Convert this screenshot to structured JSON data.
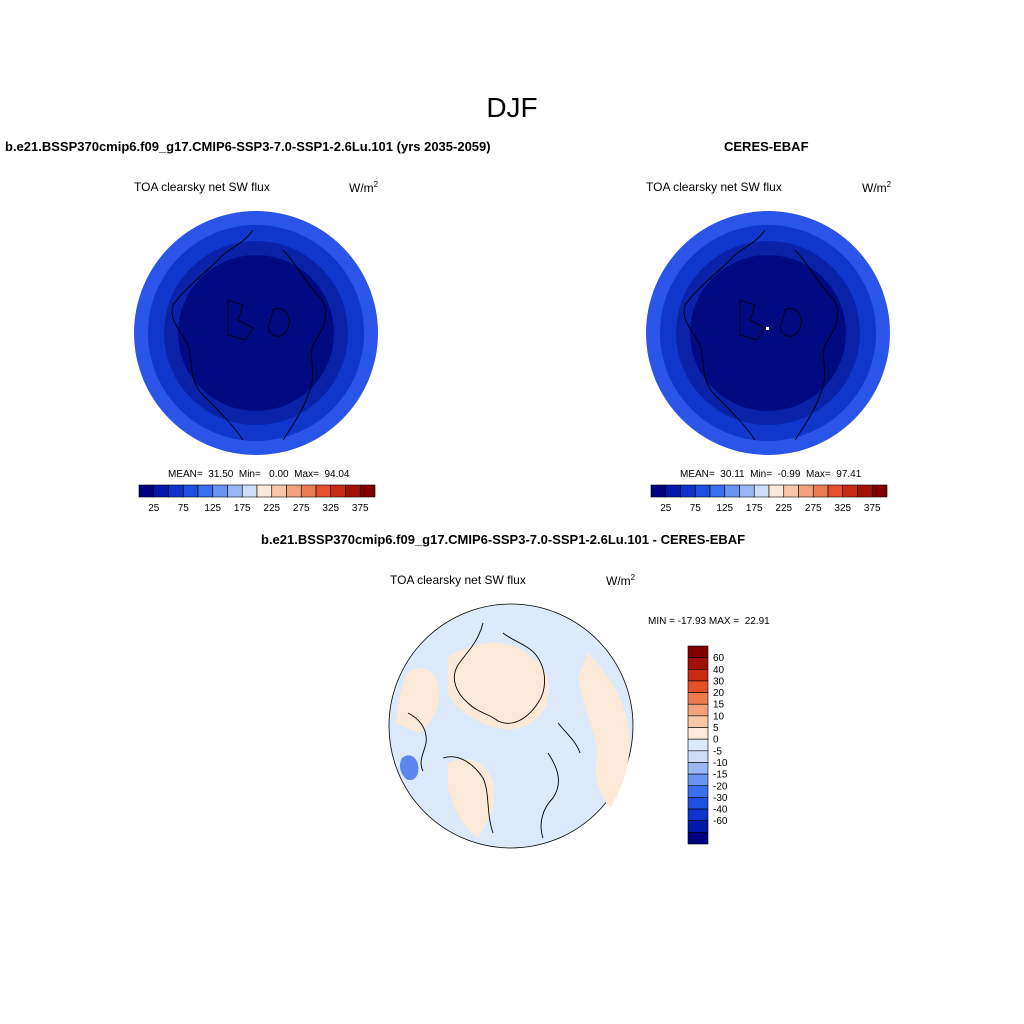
{
  "main_title": "DJF",
  "left_panel": {
    "title": "b.e21.BSSP370cmip6.f09_g17.CMIP6-SSP3-7.0-SSP1-2.6Lu.101 (yrs 2035-2059)",
    "variable": "TOA clearsky net SW flux",
    "units": "W/m",
    "units_exp": "2",
    "stats": "MEAN=  31.50  Min=   0.00  Max=  94.04"
  },
  "right_panel": {
    "title": "CERES-EBAF",
    "variable": "TOA clearsky net SW flux",
    "units": "W/m",
    "units_exp": "2",
    "stats": "MEAN=  30.11  Min=  -0.99  Max=  97.41"
  },
  "diff_panel": {
    "title": "b.e21.BSSP370cmip6.f09_g17.CMIP6-SSP3-7.0-SSP1-2.6Lu.101 - CERES-EBAF",
    "variable": "TOA clearsky net SW flux",
    "units": "W/m",
    "units_exp": "2",
    "stats": "MIN = -17.93 MAX =  22.91"
  },
  "colors": {
    "abs_scale": [
      "#000080",
      "#0019a8",
      "#0d33cc",
      "#1f4fe0",
      "#3a70f0",
      "#6a94f2",
      "#99b7f5",
      "#cddcf7",
      "#fde9d8",
      "#f8c7a6",
      "#f3a37c",
      "#ee7a52",
      "#e4502c",
      "#c82a14",
      "#a01208",
      "#800000"
    ],
    "diff_scale": [
      "#000080",
      "#0019a8",
      "#0d33cc",
      "#1f4fe0",
      "#3a70f0",
      "#6a94f2",
      "#99b7f5",
      "#cddcf7",
      "#dbeafb",
      "#fde9d8",
      "#f8c7a6",
      "#f3a37c",
      "#ee7a52",
      "#e4502c",
      "#c82a14",
      "#a01208",
      "#800000"
    ],
    "map_ring_colors": [
      "#2a55e8",
      "#1036cc",
      "#0a22a8",
      "#000a80"
    ],
    "diff_ocean": "#dce9fb",
    "diff_land": "#fde9d8"
  },
  "chart_data": [
    {
      "type": "heatmap",
      "title": "TOA clearsky net SW flux",
      "units": "W/m2",
      "colorbar_ticks": [
        "25",
        "75",
        "125",
        "175",
        "225",
        "275",
        "325",
        "375"
      ],
      "stats": {
        "mean": 31.5,
        "min": 0.0,
        "max": 94.04
      }
    },
    {
      "type": "heatmap",
      "title": "TOA clearsky net SW flux",
      "units": "W/m2",
      "colorbar_ticks": [
        "25",
        "75",
        "125",
        "175",
        "225",
        "275",
        "325",
        "375"
      ],
      "stats": {
        "mean": 30.11,
        "min": -0.99,
        "max": 97.41
      }
    },
    {
      "type": "heatmap",
      "title": "TOA clearsky net SW flux",
      "units": "W/m2",
      "colorbar_ticks": [
        "60",
        "40",
        "30",
        "20",
        "15",
        "10",
        "5",
        "0",
        "-5",
        "-10",
        "-15",
        "-20",
        "-30",
        "-40",
        "-60"
      ],
      "stats": {
        "min": -17.93,
        "max": 22.91
      }
    }
  ]
}
